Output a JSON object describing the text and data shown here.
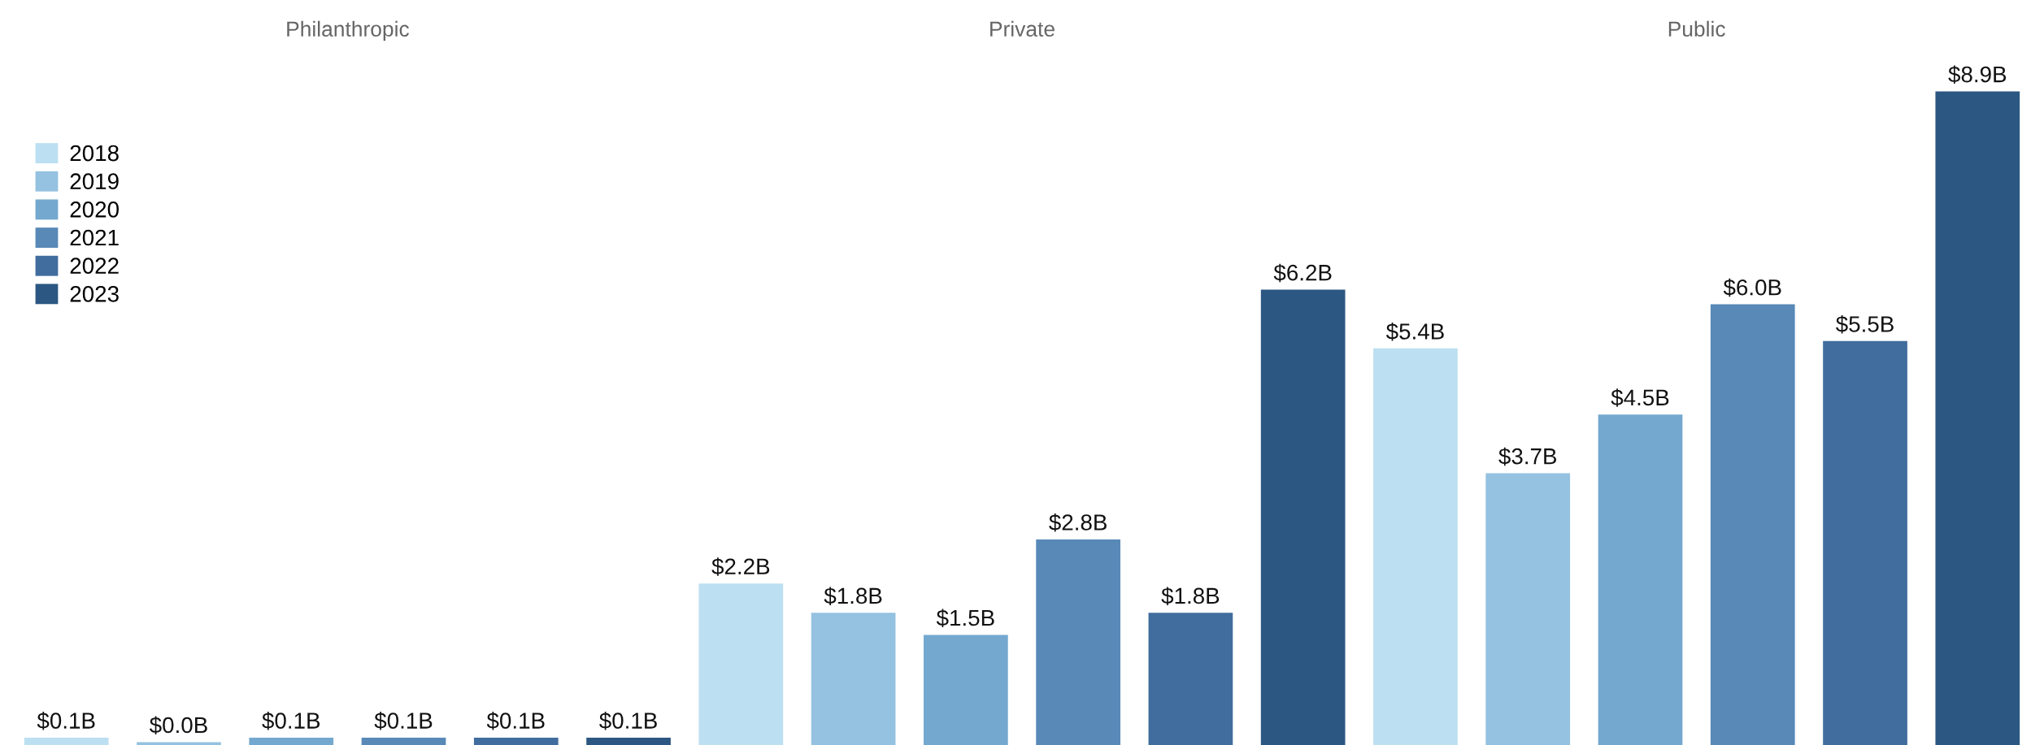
{
  "chart_data": {
    "type": "bar",
    "categories": [
      "Philanthropic",
      "Private",
      "Public"
    ],
    "legend": "top left",
    "grid": false,
    "series": [
      {
        "name": "2018",
        "color": "#bcdff1",
        "values": [
          0.1,
          2.2,
          5.4
        ],
        "value_labels": [
          "$0.1B",
          "$2.2B",
          "$5.4B"
        ]
      },
      {
        "name": "2019",
        "color": "#94c2e0",
        "values": [
          0.04,
          1.8,
          3.7
        ],
        "value_labels": [
          "$0.0B",
          "$1.8B",
          "$3.7B"
        ]
      },
      {
        "name": "2020",
        "color": "#74a8cf",
        "values": [
          0.1,
          1.5,
          4.5
        ],
        "value_labels": [
          "$0.1B",
          "$1.5B",
          "$4.5B"
        ]
      },
      {
        "name": "2021",
        "color": "#5889b7",
        "values": [
          0.1,
          2.8,
          6.0
        ],
        "value_labels": [
          "$0.1B",
          "$2.8B",
          "$6.0B"
        ]
      },
      {
        "name": "2022",
        "color": "#406d9d",
        "values": [
          0.1,
          1.8,
          5.5
        ],
        "value_labels": [
          "$0.1B",
          "$1.8B",
          "$5.5B"
        ]
      },
      {
        "name": "2023",
        "color": "#2c5782",
        "values": [
          0.1,
          6.2,
          8.9
        ],
        "value_labels": [
          "$0.1B",
          "$6.2B",
          "$8.9B"
        ]
      }
    ]
  }
}
